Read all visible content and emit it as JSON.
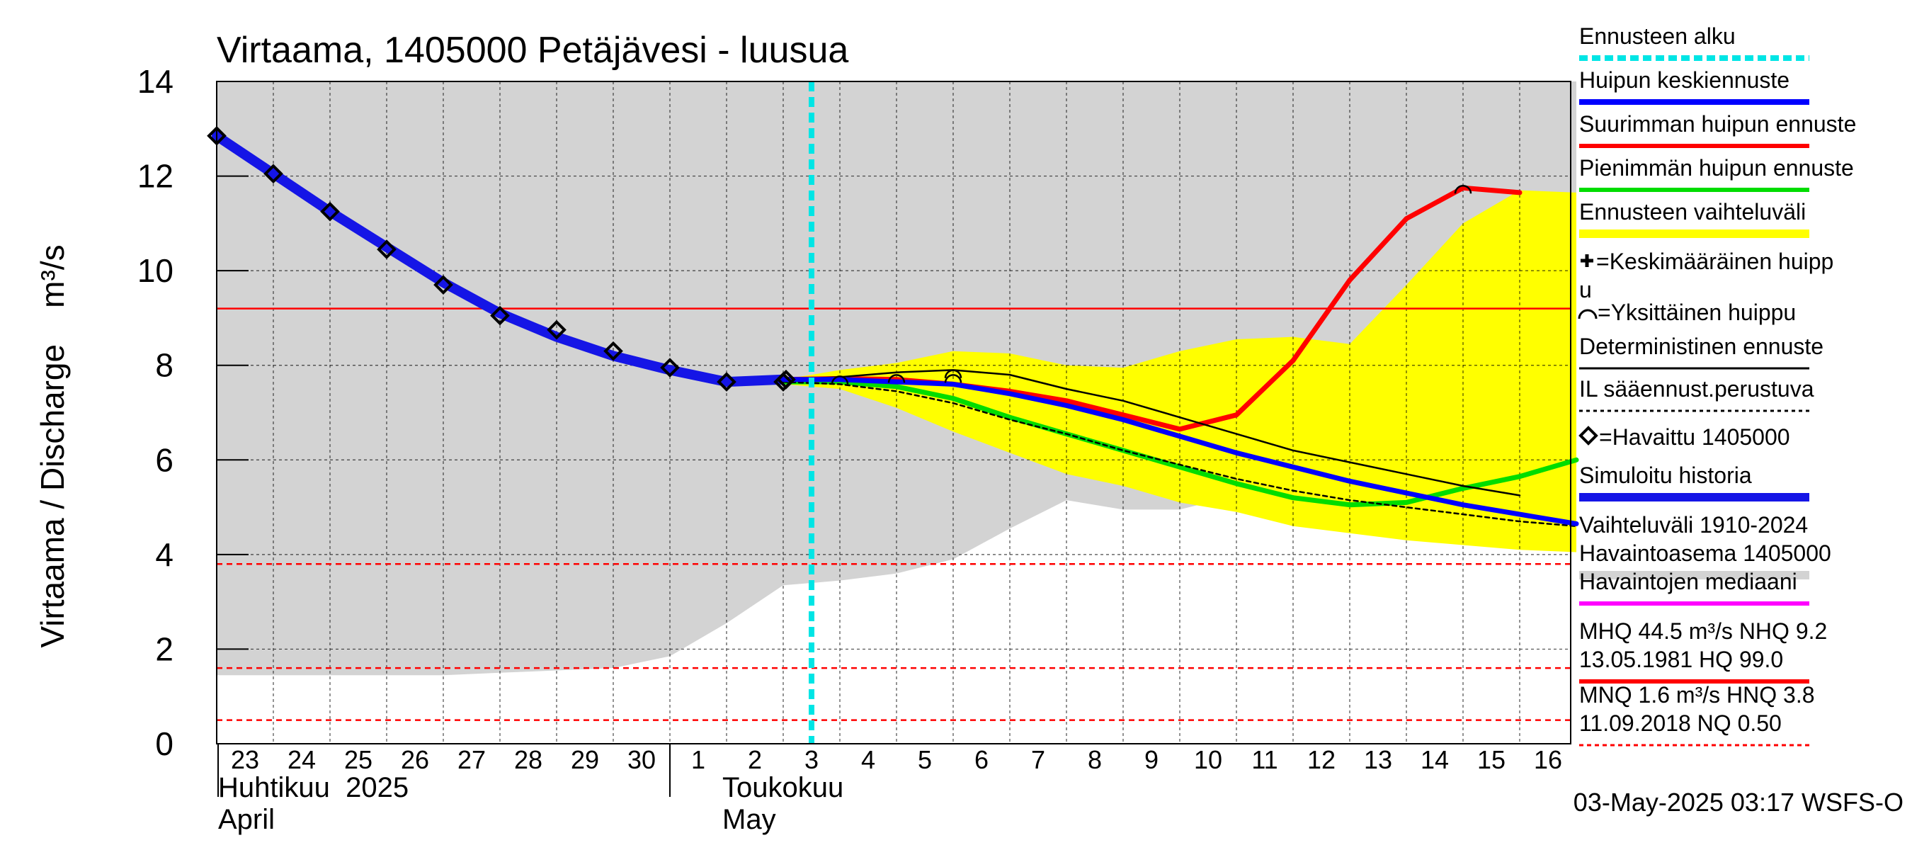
{
  "chart_data": {
    "type": "line",
    "title": "Virtaama, 1405000 Petäjävesi - luusua",
    "ylabel": "Virtaama / Discharge    m³/s",
    "ylim": [
      0,
      14
    ],
    "yticks": [
      "0",
      "2",
      "4",
      "6",
      "8",
      "10",
      "12",
      "14"
    ],
    "x_days": [
      "23",
      "24",
      "25",
      "26",
      "27",
      "28",
      "29",
      "30",
      "1",
      "2",
      "3",
      "4",
      "5",
      "6",
      "7",
      "8",
      "9",
      "10",
      "11",
      "12",
      "13",
      "14",
      "15",
      "16"
    ],
    "month_labels": {
      "april_fi": "Huhtikuu  2025",
      "april_en": "April",
      "may_fi": "Toukokuu",
      "may_en": "May"
    },
    "forecast_start_day": 10.5,
    "range_history_upper": [
      14,
      14,
      14,
      14,
      14,
      14,
      14,
      14,
      14,
      14,
      14,
      14,
      14,
      14,
      14,
      14,
      14,
      14,
      14,
      14,
      14,
      14,
      14,
      14,
      14
    ],
    "range_history_lower": [
      1.45,
      1.45,
      1.45,
      1.45,
      1.45,
      1.5,
      1.55,
      1.6,
      1.85,
      2.55,
      3.35,
      3.45,
      3.6,
      3.9,
      4.55,
      5.15,
      4.95,
      4.95,
      5.25,
      5.35,
      5.1,
      4.85,
      4.75,
      4.55,
      4.35
    ],
    "forecast_band_upper": [
      [
        10.0,
        7.7
      ],
      [
        11.0,
        7.9
      ],
      [
        12.0,
        8.05
      ],
      [
        13.0,
        8.3
      ],
      [
        14.0,
        8.25
      ],
      [
        15.0,
        8.0
      ],
      [
        16.0,
        7.95
      ],
      [
        17.0,
        8.3
      ],
      [
        18.0,
        8.55
      ],
      [
        19.0,
        8.6
      ],
      [
        20.0,
        8.45
      ],
      [
        21.0,
        9.7
      ],
      [
        22.0,
        11.0
      ],
      [
        23.0,
        11.7
      ],
      [
        24.0,
        11.65
      ]
    ],
    "forecast_band_lower": [
      [
        10.0,
        7.6
      ],
      [
        11.0,
        7.5
      ],
      [
        12.0,
        7.1
      ],
      [
        13.0,
        6.6
      ],
      [
        14.0,
        6.15
      ],
      [
        15.0,
        5.7
      ],
      [
        16.0,
        5.45
      ],
      [
        17.0,
        5.1
      ],
      [
        18.0,
        4.9
      ],
      [
        19.0,
        4.6
      ],
      [
        20.0,
        4.45
      ],
      [
        21.0,
        4.3
      ],
      [
        22.0,
        4.2
      ],
      [
        23.0,
        4.1
      ],
      [
        24.0,
        4.05
      ]
    ],
    "series": [
      {
        "name": "Simuloitu historia",
        "color": "#1515e6",
        "points": [
          [
            0,
            12.85
          ],
          [
            1,
            12.05
          ],
          [
            2,
            11.25
          ],
          [
            3,
            10.5
          ],
          [
            4,
            9.75
          ],
          [
            5,
            9.1
          ],
          [
            6,
            8.6
          ],
          [
            7,
            8.2
          ],
          [
            8,
            7.9
          ],
          [
            9,
            7.65
          ],
          [
            10,
            7.7
          ]
        ]
      },
      {
        "name": "Huipun keskiennuste",
        "color": "#0000ff",
        "points": [
          [
            10.0,
            7.7
          ],
          [
            11.0,
            7.7
          ],
          [
            12.0,
            7.65
          ],
          [
            13.0,
            7.6
          ],
          [
            14.0,
            7.4
          ],
          [
            15.0,
            7.15
          ],
          [
            16.0,
            6.85
          ],
          [
            17.0,
            6.5
          ],
          [
            18.0,
            6.15
          ],
          [
            19.0,
            5.85
          ],
          [
            20.0,
            5.55
          ],
          [
            21.0,
            5.3
          ],
          [
            22.0,
            5.05
          ],
          [
            23.0,
            4.85
          ],
          [
            24.0,
            4.65
          ]
        ]
      },
      {
        "name": "Suurimman huipun ennuste",
        "color": "#ff0000",
        "points": [
          [
            10.0,
            7.7
          ],
          [
            11.0,
            7.72
          ],
          [
            12.0,
            7.7
          ],
          [
            13.0,
            7.6
          ],
          [
            14.0,
            7.45
          ],
          [
            15.0,
            7.25
          ],
          [
            16.0,
            6.95
          ],
          [
            17.0,
            6.65
          ],
          [
            18.0,
            6.95
          ],
          [
            19.0,
            8.1
          ],
          [
            20.0,
            9.8
          ],
          [
            21.0,
            11.1
          ],
          [
            22.0,
            11.75
          ],
          [
            23.0,
            11.65
          ]
        ]
      },
      {
        "name": "Pienimmän huipun ennuste",
        "color": "#00dd00",
        "points": [
          [
            10.0,
            7.65
          ],
          [
            11.0,
            7.65
          ],
          [
            12.0,
            7.55
          ],
          [
            13.0,
            7.3
          ],
          [
            14.0,
            6.9
          ],
          [
            15.0,
            6.55
          ],
          [
            16.0,
            6.2
          ],
          [
            17.0,
            5.85
          ],
          [
            18.0,
            5.5
          ],
          [
            19.0,
            5.2
          ],
          [
            20.0,
            5.05
          ],
          [
            21.0,
            5.1
          ],
          [
            22.0,
            5.4
          ],
          [
            23.0,
            5.65
          ],
          [
            24.0,
            6.0
          ]
        ]
      },
      {
        "name": "Deterministinen ennuste",
        "color": "#000000",
        "points": [
          [
            10.0,
            7.7
          ],
          [
            11.0,
            7.75
          ],
          [
            12.0,
            7.85
          ],
          [
            13.0,
            7.9
          ],
          [
            14.0,
            7.8
          ],
          [
            15.0,
            7.5
          ],
          [
            16.0,
            7.25
          ],
          [
            17.0,
            6.9
          ],
          [
            18.0,
            6.55
          ],
          [
            19.0,
            6.2
          ],
          [
            20.0,
            5.95
          ],
          [
            21.0,
            5.7
          ],
          [
            22.0,
            5.45
          ],
          [
            23.0,
            5.25
          ]
        ]
      },
      {
        "name": "IL sääennust.perustuva",
        "color": "#000000",
        "points": [
          [
            10.0,
            7.65
          ],
          [
            11.0,
            7.6
          ],
          [
            12.0,
            7.45
          ],
          [
            13.0,
            7.2
          ],
          [
            14.0,
            6.85
          ],
          [
            15.0,
            6.55
          ],
          [
            16.0,
            6.2
          ],
          [
            17.0,
            5.9
          ],
          [
            18.0,
            5.6
          ],
          [
            19.0,
            5.35
          ],
          [
            20.0,
            5.15
          ],
          [
            21.0,
            5.0
          ],
          [
            22.0,
            4.85
          ],
          [
            23.0,
            4.7
          ],
          [
            24.0,
            4.6
          ]
        ]
      }
    ],
    "observed_points": [
      [
        0,
        12.85
      ],
      [
        1,
        12.05
      ],
      [
        2,
        11.25
      ],
      [
        3,
        10.45
      ],
      [
        4,
        9.7
      ],
      [
        5,
        9.05
      ],
      [
        6,
        8.75
      ],
      [
        7,
        8.3
      ],
      [
        8,
        7.95
      ],
      [
        9,
        7.65
      ],
      [
        10,
        7.65
      ],
      [
        10.05,
        7.7
      ]
    ],
    "individual_peaks": [
      [
        11.0,
        7.72
      ],
      [
        12.0,
        7.75
      ],
      [
        13.0,
        7.85
      ],
      [
        13.0,
        7.75
      ],
      [
        22.0,
        11.75
      ]
    ],
    "reference_lines": [
      {
        "label": "NHQ",
        "value": 9.2,
        "color": "#ff0000",
        "style": "solid"
      },
      {
        "label": "HNQ",
        "value": 3.8,
        "color": "#ff0000",
        "style": "dashed"
      },
      {
        "label": "MNQ",
        "value": 1.6,
        "color": "#ff0000",
        "style": "dashed"
      },
      {
        "label": "NQ",
        "value": 0.5,
        "color": "#ff0000",
        "style": "dashed"
      }
    ],
    "legend_position": "right"
  },
  "legend": [
    {
      "text": "Ennusteen alku",
      "color": "#00e5e5",
      "style": "dashed"
    },
    {
      "text": "Huipun keskiennuste",
      "color": "#0000ff",
      "style": "solid"
    },
    {
      "text": "Suurimman huipun ennuste",
      "color": "#ff0000",
      "style": "solid"
    },
    {
      "text": "Pienimmän huipun ennuste",
      "color": "#00dd00",
      "style": "solid"
    },
    {
      "text": "Ennusteen vaihteluväli",
      "color": "#ffff00",
      "style": "band"
    },
    {
      "text": "=Keskimääräinen huipp",
      "text2": "u",
      "marker": "plus"
    },
    {
      "text": "=Yksittäinen huippu",
      "marker": "arc"
    },
    {
      "text": "Deterministinen ennuste",
      "color": "#000000",
      "style": "thin"
    },
    {
      "text": "IL sääennust.perustuva",
      "color": "#000000",
      "style": "dotted"
    },
    {
      "text": "=Havaittu 1405000",
      "marker": "diamond"
    },
    {
      "text": "Simuloitu historia",
      "color": "#1515e6",
      "style": "thick"
    },
    {
      "text": "Vaihteluväli 1910-2024",
      "text2": " Havaintoasema 1405000",
      "color": "#d3d3d3",
      "style": "grayband"
    },
    {
      "text": "Havaintojen mediaani",
      "color": "#ff00ff",
      "style": "solid"
    },
    {
      "text": "MHQ 44.5 m³/s NHQ  9.2",
      "text2": "13.05.1981 HQ 99.0",
      "color": "#ff0000",
      "style": "solid"
    },
    {
      "text": "MNQ  1.6 m³/s HNQ  3.8",
      "text2": "11.09.2018 NQ 0.50",
      "color": "#ff0000",
      "style": "dashed"
    }
  ],
  "footer": "03-May-2025 03:17 WSFS-O"
}
